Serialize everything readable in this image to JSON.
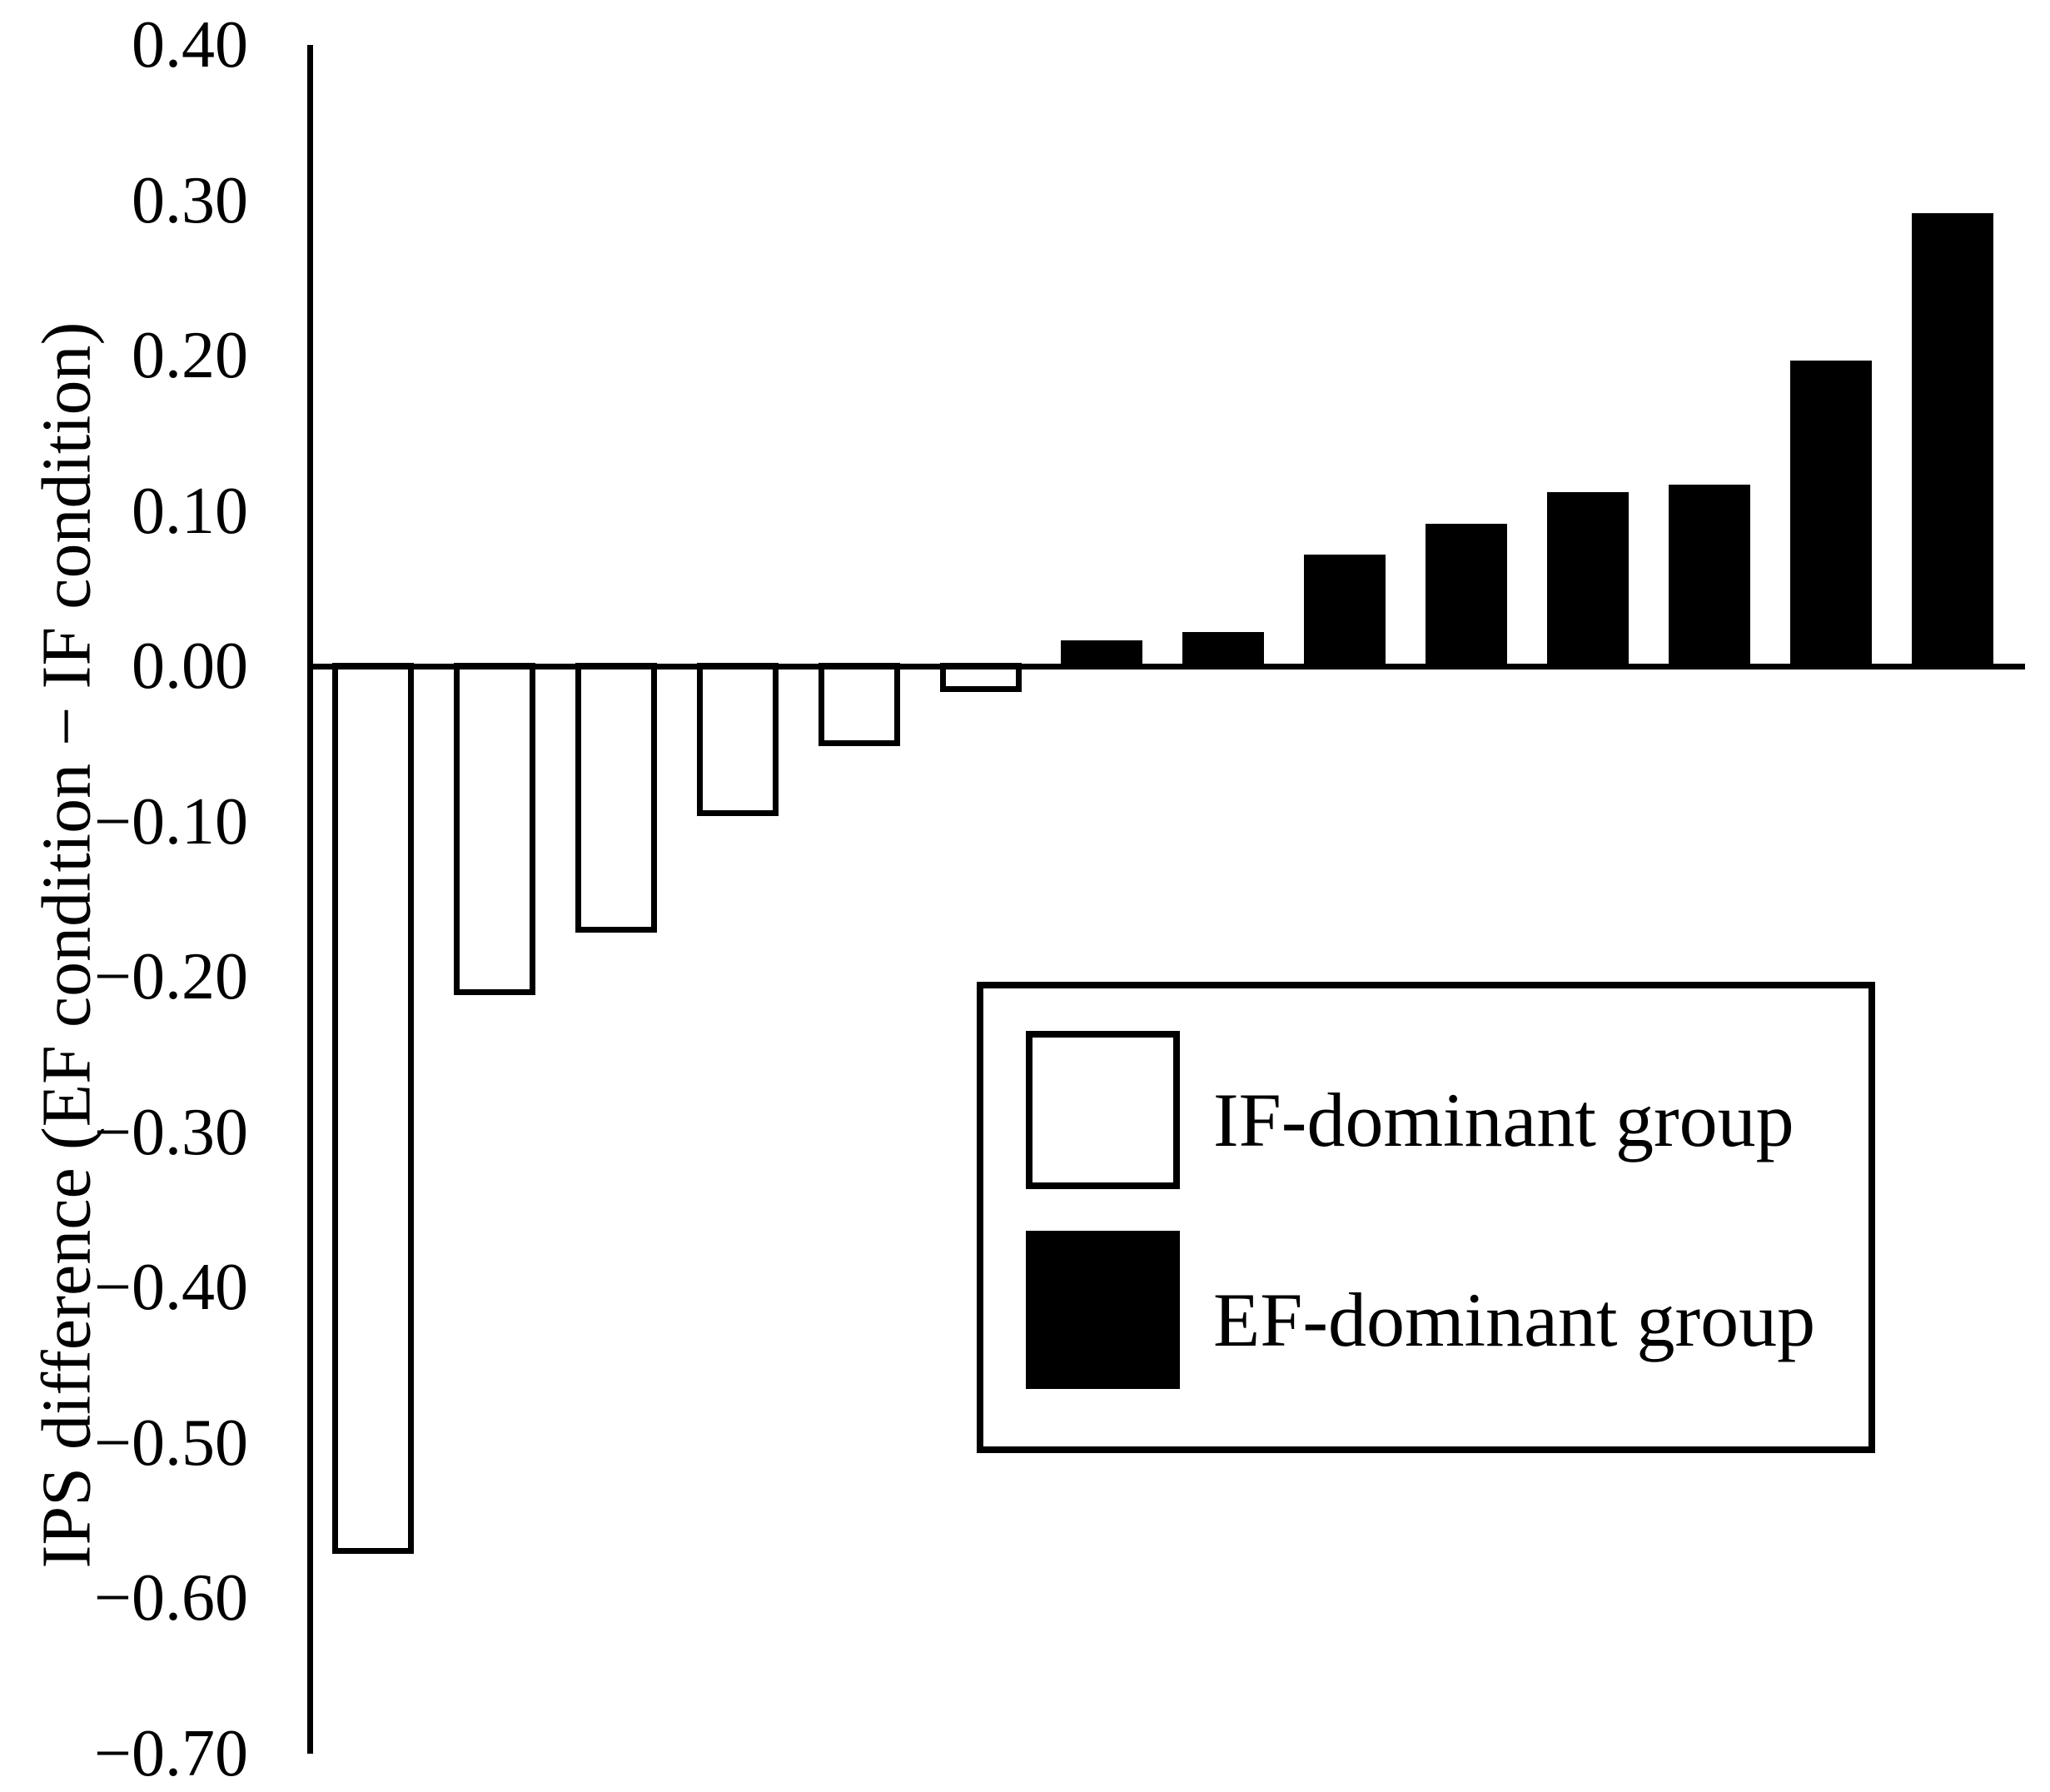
{
  "figure": {
    "background_color": "#ffffff",
    "bar_outline_color": "#000000",
    "if_bar_fill": "#ffffff",
    "ef_bar_fill": "#000000"
  },
  "chart_data": {
    "type": "bar",
    "title": "",
    "xlabel": "",
    "ylabel": "IPS difference (EF condition − IF condition)",
    "ylim": [
      -0.7,
      0.4
    ],
    "ytick_step": 0.1,
    "grid": "off",
    "legend_position": "inside lower-right box",
    "x_axis_labels": "none (individual participants, unlabeled)",
    "yticks": [
      {
        "label": "0.40",
        "value": 0.4
      },
      {
        "label": "0.30",
        "value": 0.3
      },
      {
        "label": "0.20",
        "value": 0.2
      },
      {
        "label": "0.10",
        "value": 0.1
      },
      {
        "label": "0.00",
        "value": 0.0
      },
      {
        "label": "−0.10",
        "value": -0.1
      },
      {
        "label": "−0.20",
        "value": -0.2
      },
      {
        "label": "−0.30",
        "value": -0.3
      },
      {
        "label": "−0.40",
        "value": -0.4
      },
      {
        "label": "−0.50",
        "value": -0.5
      },
      {
        "label": "−0.60",
        "value": -0.6
      },
      {
        "label": "−0.70",
        "value": -0.7
      }
    ],
    "series": [
      {
        "name": "IF-dominant group",
        "fill": "#ffffff",
        "outline": "#000000",
        "values": [
          -0.57,
          -0.21,
          -0.17,
          -0.095,
          -0.05,
          -0.015
        ]
      },
      {
        "name": "EF-dominant group",
        "fill": "#000000",
        "outline": "#000000",
        "values": [
          0.015,
          0.02,
          0.07,
          0.09,
          0.11,
          0.115,
          0.195,
          0.29
        ]
      }
    ]
  },
  "legend": {
    "if_label": "IF-dominant group",
    "ef_label": "EF-dominant group"
  }
}
